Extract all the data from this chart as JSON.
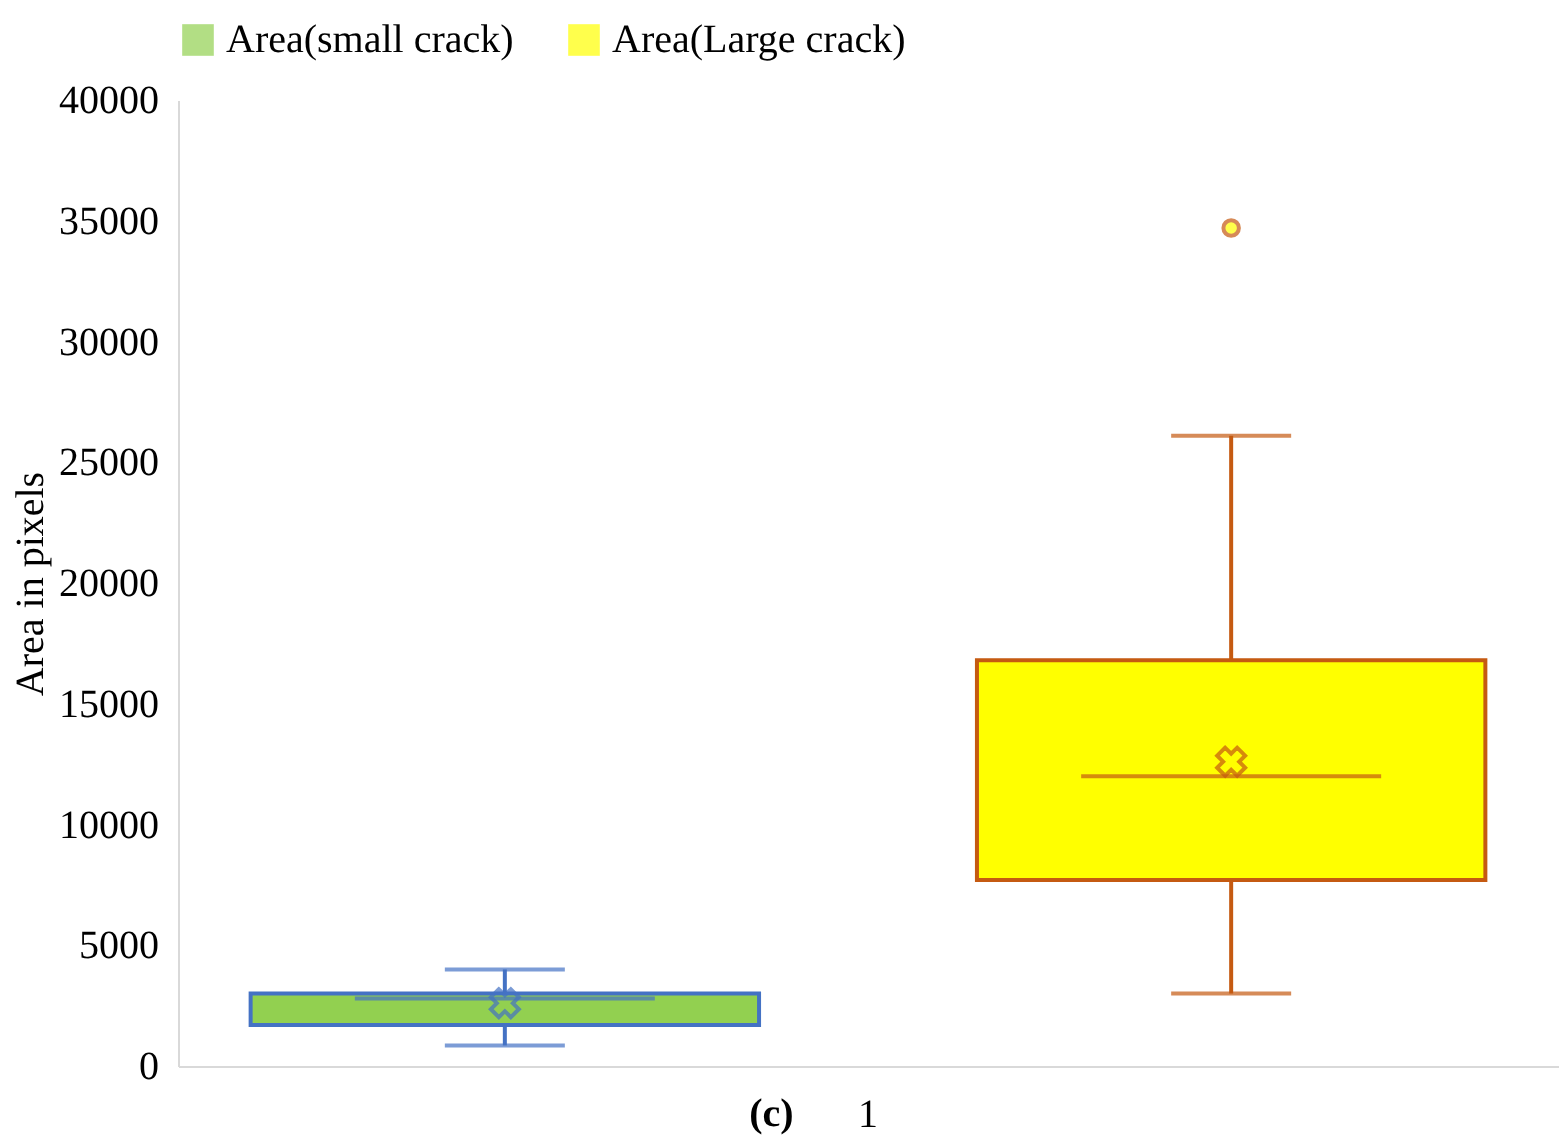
{
  "chart_data": {
    "type": "box",
    "categories": [
      "1"
    ],
    "ylabel": "Area in pixels",
    "ylim": [
      0,
      40000
    ],
    "yticks": [
      0,
      5000,
      10000,
      15000,
      20000,
      25000,
      30000,
      35000,
      40000
    ],
    "grid": false,
    "legend": "top",
    "annotations": [
      "(c)"
    ],
    "series": [
      {
        "name": "Area(small crack)",
        "color": "#92d050",
        "boxes": [
          {
            "low": 850,
            "q1": 1700,
            "median": 2800,
            "q3": 3000,
            "high": 4000,
            "mean": 2600
          }
        ]
      },
      {
        "name": "Area(Large crack)",
        "color": "#ffff00",
        "boxes": [
          {
            "low": 3000,
            "q1": 7700,
            "median": 12000,
            "q3": 16800,
            "high": 26100,
            "mean": 12600,
            "outliers": [
              34700
            ]
          }
        ]
      }
    ]
  }
}
